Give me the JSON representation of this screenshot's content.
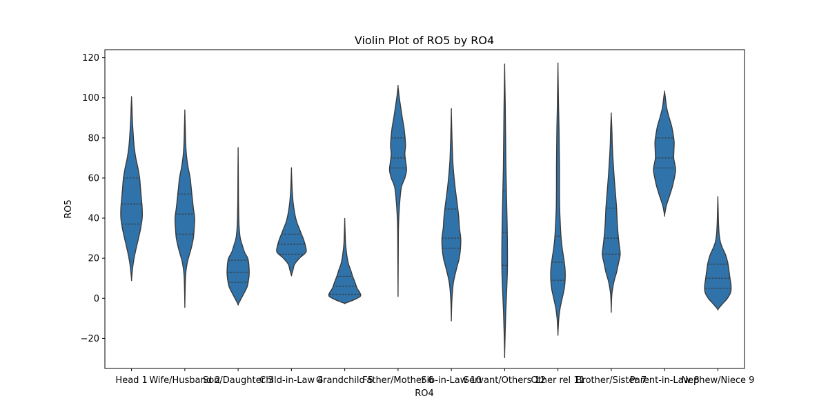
{
  "chart_data": {
    "type": "violin",
    "title": "Violin Plot of RO5 by RO4",
    "xlabel": "RO4",
    "ylabel": "RO5",
    "ylim": [
      -35,
      124
    ],
    "yticks": [
      -20,
      0,
      20,
      40,
      60,
      80,
      100,
      120
    ],
    "grid": false,
    "legend": "none",
    "fill_color": "#2f73aa",
    "edge_color": "#3a3a3a",
    "categories": [
      "Head 1",
      "Wife/Husband 2",
      "Son/Daughter 3",
      "Child-in-Law 4",
      "Grandchild 5",
      "Father/Mother 6",
      "Sib-in-Law 10",
      "Servant/Others 12",
      "Other rel 11",
      "Brother/Sister 7",
      "Parent-in-Law 8",
      "Nephew/Niece 9"
    ],
    "violins": [
      {
        "category": "Head 1",
        "min": 9.5,
        "max": 100,
        "quartiles": [
          37,
          47,
          60
        ],
        "profile": [
          [
            9.5,
            0.0
          ],
          [
            15,
            0.05
          ],
          [
            20,
            0.12
          ],
          [
            25,
            0.22
          ],
          [
            30,
            0.33
          ],
          [
            35,
            0.43
          ],
          [
            40,
            0.5
          ],
          [
            45,
            0.5
          ],
          [
            50,
            0.46
          ],
          [
            55,
            0.42
          ],
          [
            60,
            0.38
          ],
          [
            65,
            0.3
          ],
          [
            70,
            0.2
          ],
          [
            75,
            0.13
          ],
          [
            80,
            0.09
          ],
          [
            85,
            0.06
          ],
          [
            90,
            0.035
          ],
          [
            95,
            0.02
          ],
          [
            100,
            0.0
          ]
        ]
      },
      {
        "category": "Wife/Husband 2",
        "min": -3.5,
        "max": 93,
        "quartiles": [
          32,
          42,
          52
        ],
        "profile": [
          [
            -3.5,
            0.0
          ],
          [
            5,
            0.015
          ],
          [
            12,
            0.04
          ],
          [
            18,
            0.12
          ],
          [
            25,
            0.3
          ],
          [
            30,
            0.4
          ],
          [
            35,
            0.44
          ],
          [
            40,
            0.46
          ],
          [
            45,
            0.4
          ],
          [
            50,
            0.35
          ],
          [
            55,
            0.3
          ],
          [
            60,
            0.25
          ],
          [
            65,
            0.16
          ],
          [
            70,
            0.09
          ],
          [
            75,
            0.05
          ],
          [
            80,
            0.03
          ],
          [
            85,
            0.02
          ],
          [
            93,
            0.0
          ]
        ]
      },
      {
        "category": "Son/Daughter 3",
        "min": -3,
        "max": 73.5,
        "quartiles": [
          8,
          13,
          19
        ],
        "profile": [
          [
            -3,
            0.0
          ],
          [
            0,
            0.15
          ],
          [
            3,
            0.3
          ],
          [
            6,
            0.43
          ],
          [
            10,
            0.5
          ],
          [
            13,
            0.52
          ],
          [
            17,
            0.5
          ],
          [
            20,
            0.45
          ],
          [
            23,
            0.3
          ],
          [
            27,
            0.18
          ],
          [
            30,
            0.1
          ],
          [
            35,
            0.05
          ],
          [
            40,
            0.03
          ],
          [
            50,
            0.015
          ],
          [
            60,
            0.01
          ],
          [
            73.5,
            0.0
          ]
        ]
      },
      {
        "category": "Child-in-Law 4",
        "min": 11.5,
        "max": 64,
        "quartiles": [
          22,
          27,
          32
        ],
        "profile": [
          [
            11.5,
            0.0
          ],
          [
            14,
            0.07
          ],
          [
            17,
            0.15
          ],
          [
            20,
            0.38
          ],
          [
            23,
            0.68
          ],
          [
            26,
            0.66
          ],
          [
            29,
            0.58
          ],
          [
            32,
            0.47
          ],
          [
            35,
            0.36
          ],
          [
            38,
            0.25
          ],
          [
            42,
            0.16
          ],
          [
            46,
            0.1
          ],
          [
            50,
            0.06
          ],
          [
            55,
            0.03
          ],
          [
            64,
            0.0
          ]
        ]
      },
      {
        "category": "Grandchild 5",
        "min": -2.5,
        "max": 39,
        "quartiles": [
          2,
          6,
          11
        ],
        "profile": [
          [
            -2.5,
            0.0
          ],
          [
            -1,
            0.38
          ],
          [
            1,
            0.73
          ],
          [
            3,
            0.7
          ],
          [
            5,
            0.58
          ],
          [
            8,
            0.48
          ],
          [
            11,
            0.37
          ],
          [
            14,
            0.28
          ],
          [
            17,
            0.18
          ],
          [
            20,
            0.12
          ],
          [
            23,
            0.08
          ],
          [
            27,
            0.04
          ],
          [
            32,
            0.02
          ],
          [
            39,
            0.0
          ]
        ]
      },
      {
        "category": "Father/Mother 6",
        "min": 3,
        "max": 105.5,
        "quartiles": [
          65,
          70,
          80
        ],
        "profile": [
          [
            3,
            0.0
          ],
          [
            20,
            0.01
          ],
          [
            35,
            0.02
          ],
          [
            45,
            0.06
          ],
          [
            55,
            0.15
          ],
          [
            60,
            0.32
          ],
          [
            64,
            0.4
          ],
          [
            68,
            0.36
          ],
          [
            72,
            0.32
          ],
          [
            76,
            0.35
          ],
          [
            80,
            0.33
          ],
          [
            85,
            0.28
          ],
          [
            90,
            0.2
          ],
          [
            95,
            0.13
          ],
          [
            100,
            0.06
          ],
          [
            105.5,
            0.0
          ]
        ]
      },
      {
        "category": "Sib-in-Law 10",
        "min": -10,
        "max": 93,
        "quartiles": [
          25,
          30,
          44.5
        ],
        "profile": [
          [
            -10,
            0.0
          ],
          [
            0,
            0.03
          ],
          [
            8,
            0.1
          ],
          [
            15,
            0.25
          ],
          [
            20,
            0.37
          ],
          [
            25,
            0.43
          ],
          [
            30,
            0.44
          ],
          [
            35,
            0.38
          ],
          [
            40,
            0.35
          ],
          [
            45,
            0.3
          ],
          [
            50,
            0.24
          ],
          [
            55,
            0.18
          ],
          [
            60,
            0.13
          ],
          [
            65,
            0.09
          ],
          [
            70,
            0.06
          ],
          [
            80,
            0.03
          ],
          [
            93,
            0.0
          ]
        ]
      },
      {
        "category": "Servant/Others 12",
        "min": -28,
        "max": 115.5,
        "quartiles": [
          16.5,
          33,
          53.5
        ],
        "profile": [
          [
            -28,
            0.0
          ],
          [
            -15,
            0.03
          ],
          [
            -5,
            0.06
          ],
          [
            5,
            0.1
          ],
          [
            15,
            0.13
          ],
          [
            25,
            0.13
          ],
          [
            35,
            0.12
          ],
          [
            45,
            0.1
          ],
          [
            55,
            0.08
          ],
          [
            65,
            0.06
          ],
          [
            75,
            0.05
          ],
          [
            85,
            0.04
          ],
          [
            95,
            0.03
          ],
          [
            105,
            0.015
          ],
          [
            115.5,
            0.0
          ]
        ]
      },
      {
        "category": "Other rel 11",
        "min": -17.5,
        "max": 116,
        "quartiles": [
          9,
          18,
          31
        ],
        "profile": [
          [
            -17.5,
            0.0
          ],
          [
            -10,
            0.04
          ],
          [
            -5,
            0.1
          ],
          [
            0,
            0.2
          ],
          [
            5,
            0.3
          ],
          [
            10,
            0.34
          ],
          [
            15,
            0.33
          ],
          [
            20,
            0.27
          ],
          [
            25,
            0.2
          ],
          [
            30,
            0.15
          ],
          [
            35,
            0.12
          ],
          [
            45,
            0.08
          ],
          [
            55,
            0.07
          ],
          [
            65,
            0.07
          ],
          [
            75,
            0.06
          ],
          [
            85,
            0.05
          ],
          [
            95,
            0.03
          ],
          [
            105,
            0.015
          ],
          [
            116,
            0.0
          ]
        ]
      },
      {
        "category": "Brother/Sister 7",
        "min": -6,
        "max": 91.5,
        "quartiles": [
          22,
          30,
          45
        ],
        "profile": [
          [
            -6,
            0.0
          ],
          [
            2,
            0.03
          ],
          [
            8,
            0.12
          ],
          [
            13,
            0.25
          ],
          [
            18,
            0.35
          ],
          [
            22,
            0.42
          ],
          [
            27,
            0.37
          ],
          [
            32,
            0.32
          ],
          [
            38,
            0.28
          ],
          [
            45,
            0.25
          ],
          [
            52,
            0.2
          ],
          [
            60,
            0.14
          ],
          [
            68,
            0.09
          ],
          [
            76,
            0.05
          ],
          [
            84,
            0.03
          ],
          [
            91.5,
            0.0
          ]
        ]
      },
      {
        "category": "Parent-in-Law 8",
        "min": 41.5,
        "max": 103,
        "quartiles": [
          65,
          70,
          80
        ],
        "profile": [
          [
            41.5,
            0.0
          ],
          [
            46,
            0.08
          ],
          [
            50,
            0.2
          ],
          [
            55,
            0.35
          ],
          [
            60,
            0.46
          ],
          [
            64,
            0.52
          ],
          [
            67,
            0.48
          ],
          [
            70,
            0.43
          ],
          [
            74,
            0.44
          ],
          [
            78,
            0.45
          ],
          [
            82,
            0.4
          ],
          [
            86,
            0.33
          ],
          [
            90,
            0.22
          ],
          [
            95,
            0.1
          ],
          [
            100,
            0.04
          ],
          [
            103,
            0.0
          ]
        ]
      },
      {
        "category": "Nephew/Niece 9",
        "min": -5.5,
        "max": 50,
        "quartiles": [
          5,
          10,
          17
        ],
        "profile": [
          [
            -5.5,
            0.0
          ],
          [
            -3,
            0.2
          ],
          [
            0,
            0.45
          ],
          [
            3,
            0.6
          ],
          [
            6,
            0.62
          ],
          [
            10,
            0.57
          ],
          [
            14,
            0.52
          ],
          [
            18,
            0.46
          ],
          [
            22,
            0.35
          ],
          [
            25,
            0.22
          ],
          [
            28,
            0.12
          ],
          [
            32,
            0.06
          ],
          [
            38,
            0.03
          ],
          [
            44,
            0.015
          ],
          [
            50,
            0.0
          ]
        ]
      }
    ]
  }
}
